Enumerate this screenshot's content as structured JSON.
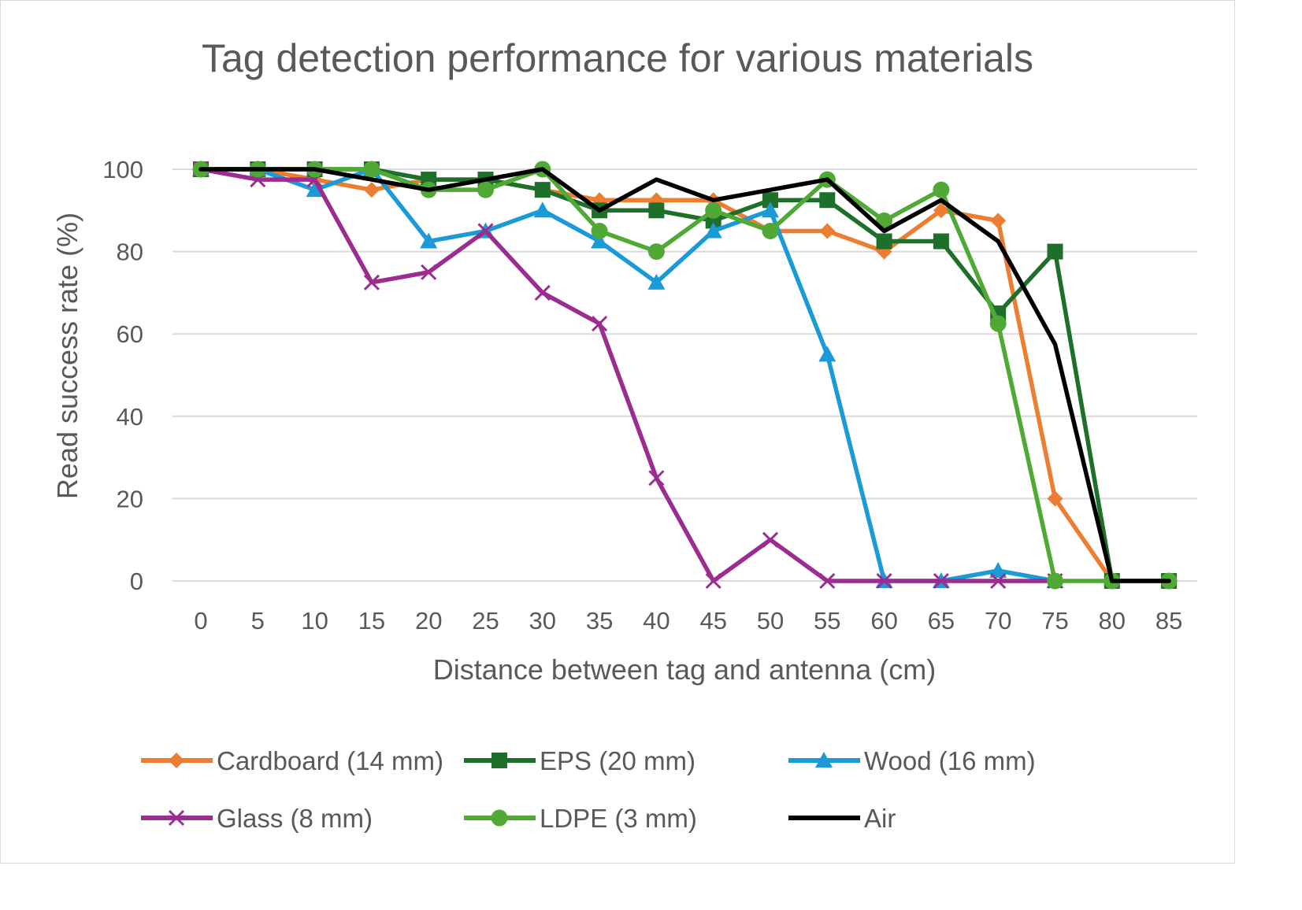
{
  "chart_data": {
    "type": "line",
    "title": "Tag detection performance for various materials",
    "xlabel": "Distance between tag and antenna (cm)",
    "ylabel": "Read success rate (%)",
    "x": [
      0,
      5,
      10,
      15,
      20,
      25,
      30,
      35,
      40,
      45,
      50,
      55,
      60,
      65,
      70,
      75,
      80,
      85
    ],
    "x_tick_labels": [
      "0",
      "5",
      "10",
      "15",
      "20",
      "25",
      "30",
      "35",
      "40",
      "45",
      "50",
      "55",
      "60",
      "65",
      "70",
      "75",
      "80",
      "85"
    ],
    "y_tick_labels": [
      "0",
      "20",
      "40",
      "60",
      "80",
      "100"
    ],
    "ylim": [
      0,
      100
    ],
    "grid": true,
    "legend_position": "bottom",
    "series": [
      {
        "name": "Cardboard (14 mm)",
        "color": "#ED7D31",
        "marker": "diamond",
        "values": [
          100,
          100,
          97.5,
          95,
          97.5,
          97.5,
          95,
          92.5,
          92.5,
          92.5,
          85,
          85,
          80,
          90,
          87.5,
          20,
          0,
          null
        ]
      },
      {
        "name": "EPS (20 mm)",
        "color": "#1E6F2A",
        "marker": "square",
        "values": [
          100,
          100,
          100,
          100,
          97.5,
          97.5,
          95,
          90,
          90,
          87.5,
          92.5,
          92.5,
          82.5,
          82.5,
          65,
          80,
          0,
          0
        ]
      },
      {
        "name": "Wood (16 mm)",
        "color": "#1A9BD7",
        "marker": "triangle",
        "values": [
          100,
          100,
          95,
          100,
          82.5,
          85,
          90,
          82.5,
          72.5,
          85,
          90,
          55,
          0,
          0,
          2.5,
          0,
          null,
          null
        ]
      },
      {
        "name": "Glass (8 mm)",
        "color": "#9B2D91",
        "marker": "x",
        "values": [
          100,
          97.5,
          97.5,
          72.5,
          75,
          85,
          70,
          62.5,
          25,
          0,
          10,
          0,
          0,
          0,
          0,
          0,
          null,
          null
        ]
      },
      {
        "name": "LDPE (3 mm)",
        "color": "#50A935",
        "marker": "circle",
        "values": [
          100,
          100,
          100,
          100,
          95,
          95,
          100,
          85,
          80,
          90,
          85,
          97.5,
          87.5,
          95,
          62.5,
          0,
          0,
          0
        ]
      },
      {
        "name": "Air",
        "color": "#000000",
        "marker": "none",
        "values": [
          100,
          100,
          100,
          97.5,
          95,
          97.5,
          100,
          90,
          97.5,
          92.5,
          95,
          97.5,
          85,
          92.5,
          82.5,
          57.5,
          0,
          0
        ]
      }
    ]
  }
}
